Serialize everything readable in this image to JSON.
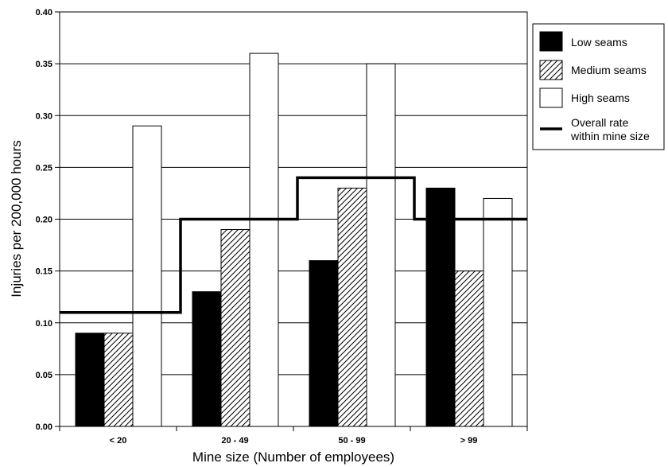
{
  "chart_data": {
    "type": "bar",
    "title": "",
    "xlabel": "Mine size (Number of employees)",
    "ylabel": "Injuries per 200,000 hours",
    "categories": [
      "< 20",
      "20 - 49",
      "50 - 99",
      "> 99"
    ],
    "series": [
      {
        "name": "Low seams",
        "fill": "black",
        "values": [
          0.09,
          0.13,
          0.16,
          0.23
        ]
      },
      {
        "name": "Medium seams",
        "fill": "diagonal-hatch",
        "values": [
          0.09,
          0.19,
          0.23,
          0.15
        ]
      },
      {
        "name": "High seams",
        "fill": "white",
        "values": [
          0.29,
          0.36,
          0.35,
          0.22
        ]
      }
    ],
    "overall_line": {
      "name": "Overall rate",
      "name_line2": "within mine size",
      "type": "step",
      "values": [
        0.11,
        0.2,
        0.24,
        0.2
      ]
    },
    "ylim": [
      0,
      0.4
    ],
    "yticks": [
      "0.00",
      "0.05",
      "0.10",
      "0.15",
      "0.20",
      "0.25",
      "0.30",
      "0.35",
      "0.40"
    ],
    "grid": "horizontal",
    "legend_position": "right"
  }
}
